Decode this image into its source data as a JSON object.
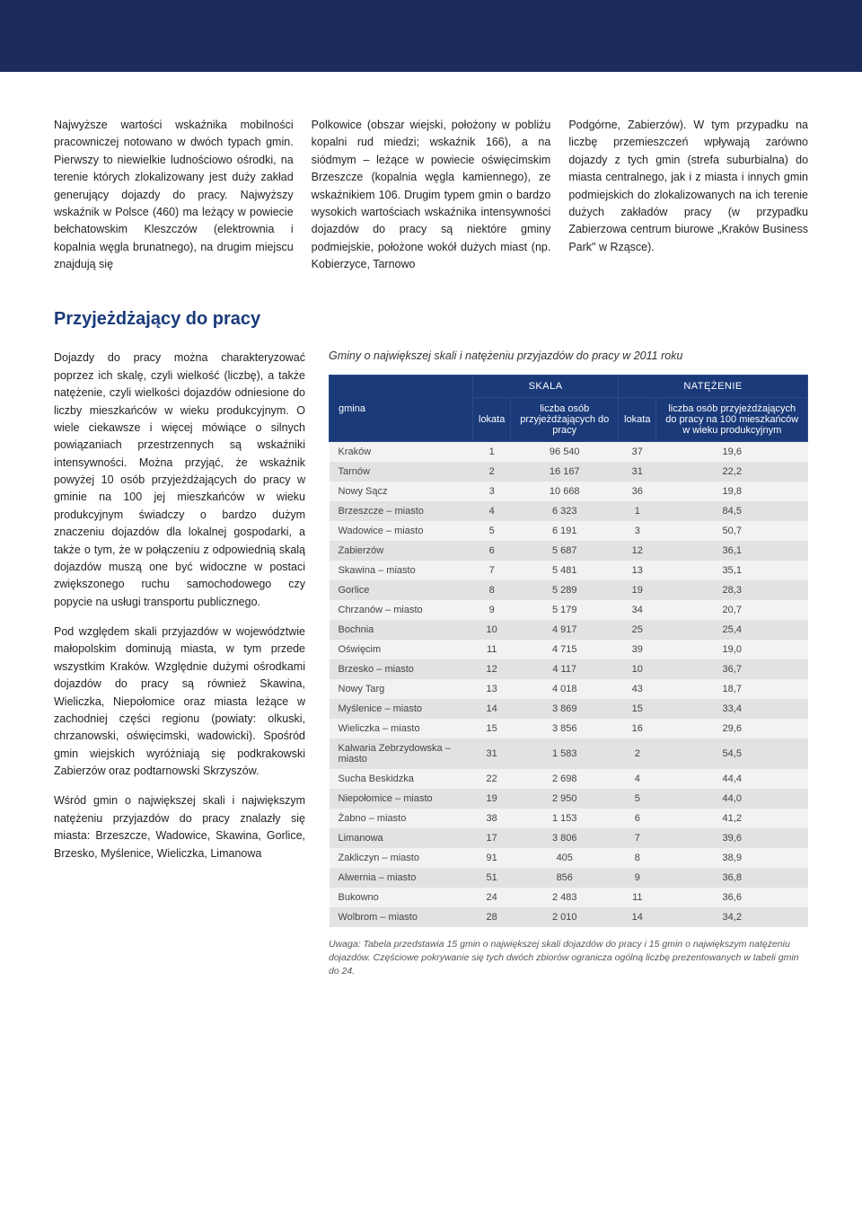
{
  "colors": {
    "top_bar": "#1a2b5c",
    "heading": "#1a3a7a",
    "table_header_bg": "#1a3a7a",
    "table_header_text": "#ffffff",
    "row_even": "#f2f2f2",
    "row_odd": "#e2e2e2",
    "body_text": "#333333"
  },
  "intro": {
    "col1": "Najwyższe wartości wskaźnika mobilności pracowniczej notowano w dwóch typach gmin. Pierwszy to niewielkie ludnościowo ośrodki, na terenie których zlokalizowany jest duży zakład generujący dojazdy do pracy. Najwyższy wskaźnik w Polsce (460) ma leżący w powiecie bełchatowskim Kleszczów (elektrownia i kopalnia węgla brunatnego), na drugim miejscu znajdują się",
    "col2": "Polkowice (obszar wiejski, położony w pobliżu kopalni rud miedzi; wskaźnik 166), a na siódmym – leżące w powiecie oświęcimskim Brzeszcze (kopalnia węgla kamiennego), ze wskaźnikiem 106. Drugim typem gmin o bardzo wysokich wartościach wskaźnika intensywności dojazdów do pracy są niektóre gminy podmiejskie, położone wokół dużych miast (np. Kobierzyce, Tarnowo",
    "col3": "Podgórne, Zabierzów). W tym przypadku na liczbę przemieszczeń wpływają zarówno dojazdy z tych gmin (strefa suburbialna) do miasta centralnego, jak i z miasta i innych gmin podmiejskich do zlokalizowanych na ich terenie dużych zakładów pracy (w przypadku Zabierzowa centrum biurowe „Kraków Business Park\" w Rząsce)."
  },
  "section_title": "Przyjeżdżający do pracy",
  "left": {
    "p1": "Dojazdy do pracy można charakteryzować poprzez ich skalę, czyli wielkość (liczbę), a także natężenie, czyli wielkości dojazdów odniesione do liczby mieszkańców w wieku produkcyjnym. O wiele ciekawsze i więcej mówiące o silnych powiązaniach przestrzennych są wskaźniki intensywności. Można przyjąć, że wskaźnik powyżej 10 osób przyjeżdżających do pracy w gminie na 100 jej mieszkańców w wieku produkcyjnym świadczy o bardzo dużym znaczeniu dojazdów dla lokalnej gospodarki, a także o tym, że w połączeniu z odpowiednią skalą dojazdów muszą one być widoczne w postaci zwiększonego ruchu samochodowego czy popycie na usługi transportu publicznego.",
    "p2": "Pod względem skali przyjazdów w województwie małopolskim dominują miasta, w tym przede wszystkim Kraków. Względnie dużymi ośrodkami dojazdów do pracy są również Skawina, Wieliczka, Niepołomice oraz miasta leżące w zachodniej części regionu (powiaty: olkuski, chrzanowski, oświęcimski, wadowicki). Spośród gmin wiejskich wyróżniają się podkrakowski Zabierzów oraz podtarnowski Skrzyszów.",
    "p3": "Wśród gmin o największej skali i największym natężeniu przyjazdów do pracy znalazły się miasta: Brzeszcze, Wadowice, Skawina, Gorlice, Brzesko, Myślenice, Wieliczka, Limanowa"
  },
  "table": {
    "caption": "Gminy o największej skali i natężeniu przyjazdów do pracy w 2011 roku",
    "header": {
      "gmina": "gmina",
      "skala": "SKALA",
      "natezenie": "NATĘŻENIE",
      "lokata": "lokata",
      "liczba_osob": "liczba osób przyjeżdżających do pracy",
      "liczba_na_100": "liczba osób przyjeżdżających do pracy na 100 mieszkańców w wieku produkcyjnym"
    },
    "rows": [
      {
        "gmina": "Kraków",
        "skala_lokata": "1",
        "skala_liczba": "96 540",
        "nat_lokata": "37",
        "nat_liczba": "19,6"
      },
      {
        "gmina": "Tarnów",
        "skala_lokata": "2",
        "skala_liczba": "16 167",
        "nat_lokata": "31",
        "nat_liczba": "22,2"
      },
      {
        "gmina": "Nowy Sącz",
        "skala_lokata": "3",
        "skala_liczba": "10 668",
        "nat_lokata": "36",
        "nat_liczba": "19,8"
      },
      {
        "gmina": "Brzeszcze – miasto",
        "skala_lokata": "4",
        "skala_liczba": "6 323",
        "nat_lokata": "1",
        "nat_liczba": "84,5"
      },
      {
        "gmina": "Wadowice – miasto",
        "skala_lokata": "5",
        "skala_liczba": "6 191",
        "nat_lokata": "3",
        "nat_liczba": "50,7"
      },
      {
        "gmina": "Zabierzów",
        "skala_lokata": "6",
        "skala_liczba": "5 687",
        "nat_lokata": "12",
        "nat_liczba": "36,1"
      },
      {
        "gmina": "Skawina – miasto",
        "skala_lokata": "7",
        "skala_liczba": "5 481",
        "nat_lokata": "13",
        "nat_liczba": "35,1"
      },
      {
        "gmina": "Gorlice",
        "skala_lokata": "8",
        "skala_liczba": "5 289",
        "nat_lokata": "19",
        "nat_liczba": "28,3"
      },
      {
        "gmina": "Chrzanów – miasto",
        "skala_lokata": "9",
        "skala_liczba": "5 179",
        "nat_lokata": "34",
        "nat_liczba": "20,7"
      },
      {
        "gmina": "Bochnia",
        "skala_lokata": "10",
        "skala_liczba": "4 917",
        "nat_lokata": "25",
        "nat_liczba": "25,4"
      },
      {
        "gmina": "Oświęcim",
        "skala_lokata": "11",
        "skala_liczba": "4 715",
        "nat_lokata": "39",
        "nat_liczba": "19,0"
      },
      {
        "gmina": "Brzesko – miasto",
        "skala_lokata": "12",
        "skala_liczba": "4 117",
        "nat_lokata": "10",
        "nat_liczba": "36,7"
      },
      {
        "gmina": "Nowy Targ",
        "skala_lokata": "13",
        "skala_liczba": "4 018",
        "nat_lokata": "43",
        "nat_liczba": "18,7"
      },
      {
        "gmina": "Myślenice – miasto",
        "skala_lokata": "14",
        "skala_liczba": "3 869",
        "nat_lokata": "15",
        "nat_liczba": "33,4"
      },
      {
        "gmina": "Wieliczka – miasto",
        "skala_lokata": "15",
        "skala_liczba": "3 856",
        "nat_lokata": "16",
        "nat_liczba": "29,6"
      },
      {
        "gmina": "Kalwaria Zebrzydowska – miasto",
        "skala_lokata": "31",
        "skala_liczba": "1 583",
        "nat_lokata": "2",
        "nat_liczba": "54,5"
      },
      {
        "gmina": "Sucha Beskidzka",
        "skala_lokata": "22",
        "skala_liczba": "2 698",
        "nat_lokata": "4",
        "nat_liczba": "44,4"
      },
      {
        "gmina": "Niepołomice – miasto",
        "skala_lokata": "19",
        "skala_liczba": "2 950",
        "nat_lokata": "5",
        "nat_liczba": "44,0"
      },
      {
        "gmina": "Żabno – miasto",
        "skala_lokata": "38",
        "skala_liczba": "1 153",
        "nat_lokata": "6",
        "nat_liczba": "41,2"
      },
      {
        "gmina": "Limanowa",
        "skala_lokata": "17",
        "skala_liczba": "3 806",
        "nat_lokata": "7",
        "nat_liczba": "39,6"
      },
      {
        "gmina": "Zakliczyn – miasto",
        "skala_lokata": "91",
        "skala_liczba": "405",
        "nat_lokata": "8",
        "nat_liczba": "38,9"
      },
      {
        "gmina": "Alwernia – miasto",
        "skala_lokata": "51",
        "skala_liczba": "856",
        "nat_lokata": "9",
        "nat_liczba": "36,8"
      },
      {
        "gmina": "Bukowno",
        "skala_lokata": "24",
        "skala_liczba": "2 483",
        "nat_lokata": "11",
        "nat_liczba": "36,6"
      },
      {
        "gmina": "Wolbrom – miasto",
        "skala_lokata": "28",
        "skala_liczba": "2 010",
        "nat_lokata": "14",
        "nat_liczba": "34,2"
      }
    ],
    "note": "Uwaga: Tabela przedstawia 15 gmin o największej skali dojazdów do pracy i 15 gmin o największym natężeniu dojazdów. Częściowe pokrywanie się tych dwóch zbiorów ogranicza ogólną liczbę prezentowanych w tabeli gmin do 24."
  }
}
